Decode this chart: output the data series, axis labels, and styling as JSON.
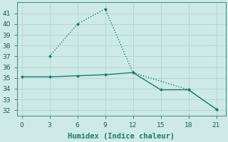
{
  "line1_x": [
    0,
    3,
    6,
    9,
    12,
    15,
    18,
    21
  ],
  "line1_y": [
    35.1,
    35.1,
    35.2,
    35.3,
    35.5,
    33.9,
    33.9,
    32.1
  ],
  "line2_x": [
    3,
    6,
    9,
    12,
    18,
    21
  ],
  "line2_y": [
    37.0,
    40.0,
    41.4,
    35.5,
    33.9,
    32.1
  ],
  "line_color": "#1a7a6e",
  "bg_color": "#ceeae6",
  "grid_color": "#b0d8d4",
  "xlabel": "Humidex (Indice chaleur)",
  "xlim": [
    -0.5,
    22
  ],
  "ylim": [
    31.5,
    42
  ],
  "yticks": [
    32,
    33,
    34,
    35,
    36,
    37,
    38,
    39,
    40,
    41
  ],
  "xticks": [
    0,
    3,
    6,
    9,
    12,
    15,
    18,
    21
  ],
  "xlabel_fontsize": 7.5,
  "tick_fontsize": 6.5
}
